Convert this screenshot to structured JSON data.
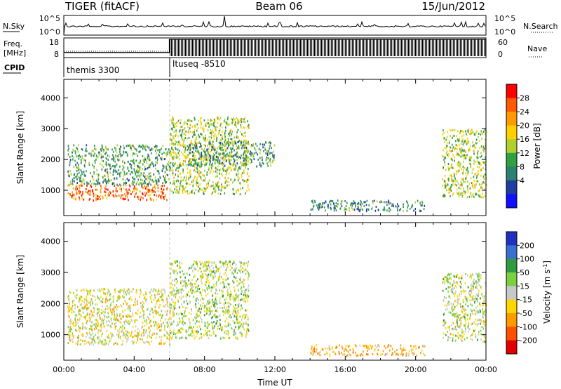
{
  "header": {
    "radar": "TIGER (fitACF)",
    "beam": "Beam 06",
    "date": "15/Jun/2012"
  },
  "nsky_panel": {
    "label": "N.Sky",
    "tick_top": "10^5",
    "tick_bottom": "10^0",
    "right_label": "N.Search",
    "right_tick_top": "10^5",
    "right_tick_bottom": "10^0"
  },
  "freq_panel": {
    "label_line1": "Freq.",
    "label_line2": "[MHz]",
    "tick_top": "18",
    "tick_bottom": "8",
    "right_label": "Nave",
    "right_tick_top": "60",
    "right_tick_bottom": "0",
    "freq_segments": [
      {
        "from_hour": 0.0,
        "to_hour": 6.0,
        "mhz": 10.2
      },
      {
        "from_hour": 6.0,
        "to_hour": 24.0,
        "mhz": 18.0
      }
    ],
    "ylim_mhz": [
      8,
      18
    ],
    "nave_ylim": [
      0,
      60
    ]
  },
  "cpid_panel": {
    "label": "CPID",
    "programs": [
      {
        "name": "themis 3300",
        "start_hour": 0.0
      },
      {
        "name": "ltuseq -8510",
        "start_hour": 6.0
      }
    ]
  },
  "power_colorbar": {
    "label": "Power [dB]",
    "ticks": [
      "28",
      "24",
      "20",
      "16",
      "12",
      "8",
      "4"
    ],
    "colors": [
      "#ff0000",
      "#ff5a00",
      "#ff9a00",
      "#ffd000",
      "#b0d030",
      "#30a040",
      "#2e8070",
      "#1f3ca0",
      "#1010ff"
    ]
  },
  "velocity_colorbar": {
    "label_main": "Velocity [m s",
    "label_sup": "-1",
    "label_end": "]",
    "ticks": [
      "200",
      "100",
      "50",
      "15",
      "-15",
      "-50",
      "-100",
      "-200"
    ],
    "colors": [
      "#2030c0",
      "#3a6fd0",
      "#2f9a40",
      "#7ad040",
      "#c8c8c8",
      "#ffd700",
      "#ff9a00",
      "#ff5000",
      "#e00000"
    ]
  },
  "chart_data": [
    {
      "type": "heatmap",
      "quantity": "Power",
      "ylabel": "Slant Range [km]",
      "ylim": [
        180,
        4600
      ],
      "yticks": [
        1000,
        2000,
        3000,
        4000
      ],
      "xlim_hours": [
        0,
        24
      ],
      "regions": [
        {
          "t0": 0.2,
          "t1": 6.0,
          "r0": 700,
          "r1": 1200,
          "db": 24
        },
        {
          "t0": 0.2,
          "t1": 6.0,
          "r0": 1200,
          "r1": 2500,
          "db": 10
        },
        {
          "t0": 6.0,
          "t1": 10.5,
          "r0": 900,
          "r1": 3400,
          "db": 14
        },
        {
          "t0": 7.0,
          "t1": 12.0,
          "r0": 1800,
          "r1": 2600,
          "db": 9
        },
        {
          "t0": 14.0,
          "t1": 20.5,
          "r0": 350,
          "r1": 700,
          "db": 8
        },
        {
          "t0": 21.5,
          "t1": 24.0,
          "r0": 800,
          "r1": 3000,
          "db": 14
        }
      ]
    },
    {
      "type": "heatmap",
      "quantity": "Velocity",
      "ylabel": "Slant Range [km]",
      "xlabel": "Time UT",
      "ylim": [
        180,
        4600
      ],
      "yticks": [
        1000,
        2000,
        3000,
        4000
      ],
      "xlim_hours": [
        0,
        24
      ],
      "xtick_labels": [
        "00:00",
        "04:00",
        "08:00",
        "12:00",
        "16:00",
        "20:00",
        "00:00"
      ],
      "regions": [
        {
          "t0": 0.2,
          "t1": 6.0,
          "r0": 700,
          "r1": 2500,
          "vel": -15
        },
        {
          "t0": 6.0,
          "t1": 10.5,
          "r0": 900,
          "r1": 3400,
          "vel": 10
        },
        {
          "t0": 14.0,
          "t1": 20.5,
          "r0": 350,
          "r1": 700,
          "vel": -50
        },
        {
          "t0": 21.5,
          "t1": 24.0,
          "r0": 800,
          "r1": 3000,
          "vel": 5
        }
      ]
    }
  ]
}
